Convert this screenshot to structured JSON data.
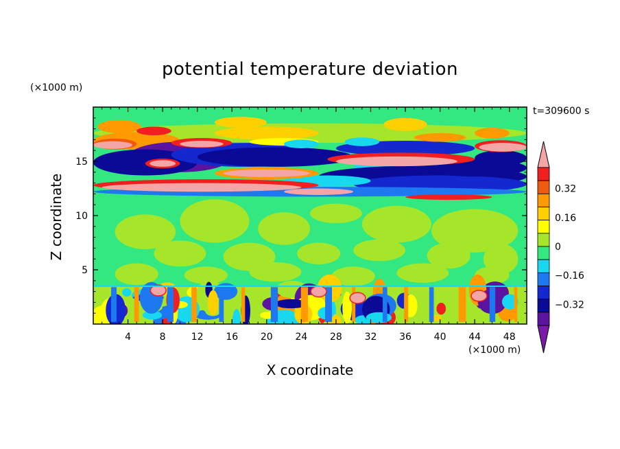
{
  "chart_data": {
    "type": "heatmap",
    "title": "potential temperature deviation",
    "xlabel": "X coordinate",
    "ylabel": "Z coordinate",
    "x_unit": "(×1000 m)",
    "y_unit": "(×1000 m)",
    "time_label": "t=309600 s",
    "xlim": [
      0,
      50
    ],
    "ylim": [
      0,
      20
    ],
    "x_ticks": [
      4,
      8,
      12,
      16,
      20,
      24,
      28,
      32,
      36,
      40,
      44,
      48
    ],
    "y_ticks": [
      5,
      10,
      15
    ],
    "colorbar": {
      "levels": [
        -0.4,
        -0.32,
        -0.24,
        -0.16,
        -0.08,
        0,
        0.08,
        0.16,
        0.24,
        0.32,
        0.4
      ],
      "labeled_ticks": [
        0.32,
        0.16,
        0,
        -0.16,
        -0.32
      ],
      "colors_top_to_bottom": [
        "#f4a6a6",
        "#f02020",
        "#f05a10",
        "#ff9900",
        "#ffd000",
        "#ffff00",
        "#a6e62a",
        "#33e880",
        "#18d8f0",
        "#1e78f0",
        "#1428d0",
        "#0a0a96",
        "#5a14a0",
        "#7a1aa8"
      ],
      "extend": "both"
    },
    "field_description": {
      "background_value": 0,
      "upper_layer_z_range": [
        11,
        18.5
      ],
      "boundary_layer_z_range": [
        0,
        3.5
      ]
    }
  }
}
